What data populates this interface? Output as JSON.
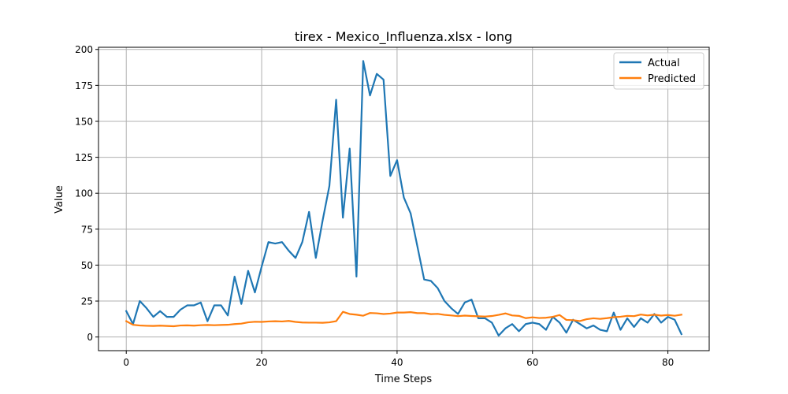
{
  "chart_data": {
    "type": "line",
    "title": "tirex - Mexico_Influenza.xlsx - long",
    "xlabel": "Time Steps",
    "ylabel": "Value",
    "xlim": [
      -4.1,
      86.1
    ],
    "ylim": [
      -9.5,
      201.5
    ],
    "xticks": [
      0,
      20,
      40,
      60,
      80
    ],
    "yticks": [
      0,
      25,
      50,
      75,
      100,
      125,
      150,
      175,
      200
    ],
    "grid": true,
    "legend": "top-right",
    "series": [
      {
        "name": "Actual",
        "color": "#1f77b4",
        "values": [
          18,
          9,
          25,
          20,
          14,
          18,
          14,
          14,
          19,
          22,
          22,
          24,
          11,
          22,
          22,
          15,
          42,
          23,
          46,
          31,
          49,
          66,
          65,
          66,
          60,
          55,
          66,
          87,
          55,
          81,
          105,
          165,
          83,
          131,
          42,
          192,
          168,
          183,
          179,
          112,
          123,
          97,
          86,
          63,
          40,
          39,
          34,
          25,
          20,
          16,
          24,
          26,
          13,
          13,
          10,
          1,
          6,
          9,
          4,
          9,
          10,
          9,
          5,
          14,
          10,
          3,
          12,
          9,
          6,
          8,
          5,
          4,
          17,
          5,
          13,
          7,
          13,
          10,
          16,
          10,
          14,
          12,
          2
        ]
      },
      {
        "name": "Predicted",
        "color": "#ff7f0e",
        "values": [
          11,
          8.5,
          8,
          7.8,
          7.7,
          7.9,
          7.7,
          7.5,
          8,
          8.1,
          7.9,
          8.2,
          8.4,
          8.2,
          8.4,
          8.5,
          9,
          9.3,
          10.2,
          10.6,
          10.5,
          10.8,
          11,
          10.8,
          11.2,
          10.5,
          10.1,
          10,
          10,
          9.9,
          10.2,
          11,
          17.5,
          16,
          15.5,
          14.8,
          16.7,
          16.5,
          16,
          16.3,
          17,
          17,
          17.3,
          16.6,
          16.6,
          15.9,
          16.1,
          15.4,
          15,
          14.5,
          14.9,
          14.6,
          14.4,
          14.2,
          14.6,
          15.4,
          16.4,
          15,
          14.7,
          13.1,
          13.7,
          13.2,
          13.4,
          14,
          15.3,
          11.9,
          11.7,
          11.1,
          12.4,
          13,
          12.6,
          13.1,
          13.8,
          14.1,
          14.7,
          14.5,
          15.6,
          15,
          15.5,
          14.9,
          15.3,
          14.8,
          15.5
        ]
      }
    ]
  }
}
